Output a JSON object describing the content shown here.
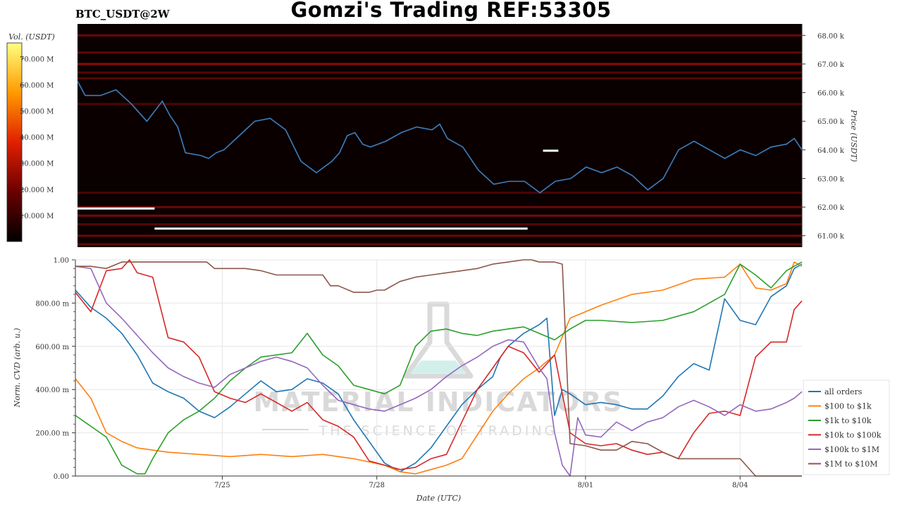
{
  "title": "Gomzi's Trading REF:53305",
  "symbol": "BTC_USDT@2W",
  "watermark": {
    "name": "MATERIAL INDICATORS",
    "tagline": "THE SCIENCE OF TRADING"
  },
  "colors": {
    "price_line": "#3a7fc0",
    "heat_bg": "#0b0000"
  },
  "chart_data": [
    {
      "type": "heatmap",
      "panel": "top",
      "colorbar_label": "Vol. (USDT)",
      "colorbar_ticks": [
        "10.000 M",
        "20.000 M",
        "30.000 M",
        "40.000 M",
        "50.000 M",
        "60.000 M",
        "70.000 M"
      ],
      "colorbar_values": [
        10,
        20,
        30,
        40,
        50,
        60,
        70
      ],
      "colorbar_range": [
        0,
        76
      ],
      "ylabel": "Price (USDT)",
      "ylim": [
        60.6,
        68.4
      ],
      "y_ticks": [
        "61.00 k",
        "62.00 k",
        "63.00 k",
        "64.00 k",
        "65.00 k",
        "66.00 k",
        "67.00 k",
        "68.00 k"
      ],
      "y_tick_values": [
        61,
        62,
        63,
        64,
        65,
        66,
        67,
        68
      ],
      "xlim": [
        23.4,
        28.1
      ],
      "heat_levels": [
        {
          "price": 68.0,
          "vol": 9
        },
        {
          "price": 67.4,
          "vol": 8
        },
        {
          "price": 67.0,
          "vol": 12
        },
        {
          "price": 66.7,
          "vol": 7
        },
        {
          "price": 66.5,
          "vol": 7
        },
        {
          "price": 65.6,
          "vol": 6
        },
        {
          "price": 62.5,
          "vol": 6
        },
        {
          "price": 62.0,
          "vol": 9
        },
        {
          "price": 61.7,
          "vol": 10
        },
        {
          "price": 61.4,
          "vol": 7
        },
        {
          "price": 61.0,
          "vol": 9
        },
        {
          "price": 60.7,
          "vol": 8
        }
      ],
      "price_series": {
        "name": "price",
        "x": [
          23.4,
          23.45,
          23.55,
          23.65,
          23.75,
          23.85,
          23.95,
          24.0,
          24.05,
          24.1,
          24.2,
          24.25,
          24.3,
          24.35,
          24.45,
          24.55,
          24.65,
          24.75,
          24.85,
          24.95,
          25.05,
          25.1,
          25.15,
          25.2,
          25.25,
          25.3,
          25.4,
          25.5,
          25.6,
          25.7,
          25.75,
          25.8,
          25.9,
          26.0,
          26.1,
          26.2,
          26.3,
          26.4,
          26.5,
          26.6,
          26.7,
          26.8,
          26.9,
          27.0,
          27.1,
          27.2,
          27.3,
          27.4,
          27.5,
          27.6,
          27.7,
          27.8,
          27.9,
          28.0,
          28.05,
          28.1
        ],
        "y": [
          66.4,
          65.9,
          65.9,
          66.1,
          65.6,
          65.0,
          65.7,
          65.2,
          64.8,
          63.9,
          63.8,
          63.7,
          63.9,
          64.0,
          64.5,
          65.0,
          65.1,
          64.7,
          63.6,
          63.2,
          63.6,
          63.9,
          64.5,
          64.6,
          64.2,
          64.1,
          64.3,
          64.6,
          64.8,
          64.7,
          64.9,
          64.4,
          64.1,
          63.3,
          62.8,
          62.9,
          62.9,
          62.5,
          62.9,
          63.0,
          63.4,
          63.2,
          63.4,
          63.1,
          62.6,
          63.0,
          64.0,
          64.3,
          64.0,
          63.7,
          64.0,
          63.8,
          64.1,
          64.2,
          64.4,
          64.0
        ]
      },
      "markers": [
        {
          "x0": 23.4,
          "x1": 23.9,
          "price": 61.95
        },
        {
          "x0": 23.9,
          "x1": 26.32,
          "price": 61.25
        },
        {
          "x0": 26.42,
          "x1": 26.52,
          "price": 63.97
        }
      ]
    },
    {
      "type": "line",
      "panel": "bottom",
      "xlabel": "Date (UTC)",
      "ylabel": "Norm. CVD (arb. u.)",
      "ylim": [
        0,
        1
      ],
      "y_ticks": [
        "0.00",
        "200.00 m",
        "400.00 m",
        "600.00 m",
        "800.00 m",
        "1.00"
      ],
      "y_tick_values": [
        0,
        0.2,
        0.4,
        0.6,
        0.8,
        1.0
      ],
      "xlim": [
        23.4,
        28.1
      ],
      "x_ticks": [
        "7/25",
        "7/28",
        "8/01",
        "8/04"
      ],
      "x_tick_values": [
        24.35,
        25.35,
        26.7,
        27.7
      ],
      "legend_position": "lower-right",
      "series": [
        {
          "name": "all orders",
          "color": "#1f77b4",
          "x": [
            23.4,
            23.5,
            23.6,
            23.7,
            23.8,
            23.9,
            24.0,
            24.1,
            24.2,
            24.3,
            24.4,
            24.5,
            24.6,
            24.7,
            24.8,
            24.9,
            25.0,
            25.1,
            25.2,
            25.3,
            25.4,
            25.5,
            25.6,
            25.7,
            25.8,
            25.9,
            26.0,
            26.1,
            26.15,
            26.2,
            26.3,
            26.4,
            26.45,
            26.5,
            26.55,
            26.6,
            26.7,
            26.8,
            26.9,
            27.0,
            27.1,
            27.2,
            27.3,
            27.4,
            27.5,
            27.6,
            27.7,
            27.8,
            27.9,
            28.0,
            28.05,
            28.1
          ],
          "y": [
            0.86,
            0.78,
            0.73,
            0.66,
            0.56,
            0.43,
            0.39,
            0.36,
            0.3,
            0.27,
            0.32,
            0.38,
            0.44,
            0.39,
            0.4,
            0.45,
            0.43,
            0.38,
            0.26,
            0.16,
            0.06,
            0.02,
            0.06,
            0.13,
            0.23,
            0.33,
            0.4,
            0.46,
            0.55,
            0.6,
            0.66,
            0.7,
            0.73,
            0.28,
            0.4,
            0.38,
            0.33,
            0.34,
            0.33,
            0.31,
            0.31,
            0.37,
            0.46,
            0.52,
            0.49,
            0.82,
            0.72,
            0.7,
            0.83,
            0.88,
            0.96,
            0.98
          ]
        },
        {
          "name": "$100 to $1k",
          "color": "#ff7f0e",
          "x": [
            23.4,
            23.5,
            23.6,
            23.7,
            23.8,
            23.9,
            24.0,
            24.2,
            24.4,
            24.6,
            24.8,
            25.0,
            25.2,
            25.4,
            25.5,
            25.6,
            25.7,
            25.8,
            25.9,
            26.0,
            26.1,
            26.2,
            26.3,
            26.4,
            26.45,
            26.5,
            26.6,
            26.8,
            27.0,
            27.2,
            27.4,
            27.6,
            27.7,
            27.8,
            27.9,
            28.0,
            28.05,
            28.1
          ],
          "y": [
            0.45,
            0.36,
            0.2,
            0.16,
            0.13,
            0.12,
            0.11,
            0.1,
            0.09,
            0.1,
            0.09,
            0.1,
            0.08,
            0.05,
            0.02,
            0.01,
            0.03,
            0.05,
            0.08,
            0.19,
            0.3,
            0.38,
            0.45,
            0.5,
            0.53,
            0.56,
            0.73,
            0.79,
            0.84,
            0.86,
            0.91,
            0.92,
            0.98,
            0.87,
            0.86,
            0.89,
            0.99,
            0.97
          ]
        },
        {
          "name": "$1k to $10k",
          "color": "#2ca02c",
          "x": [
            23.4,
            23.5,
            23.6,
            23.7,
            23.8,
            23.85,
            23.9,
            24.0,
            24.1,
            24.2,
            24.3,
            24.4,
            24.5,
            24.6,
            24.7,
            24.8,
            24.9,
            25.0,
            25.1,
            25.2,
            25.3,
            25.4,
            25.5,
            25.6,
            25.7,
            25.8,
            25.9,
            26.0,
            26.1,
            26.2,
            26.3,
            26.4,
            26.5,
            26.6,
            26.7,
            26.8,
            27.0,
            27.2,
            27.4,
            27.5,
            27.6,
            27.7,
            27.8,
            27.9,
            28.0,
            28.05,
            28.1
          ],
          "y": [
            0.28,
            0.23,
            0.18,
            0.05,
            0.01,
            0.01,
            0.08,
            0.2,
            0.26,
            0.3,
            0.36,
            0.44,
            0.5,
            0.55,
            0.56,
            0.57,
            0.66,
            0.56,
            0.51,
            0.42,
            0.4,
            0.38,
            0.42,
            0.6,
            0.67,
            0.68,
            0.66,
            0.65,
            0.67,
            0.68,
            0.69,
            0.66,
            0.63,
            0.68,
            0.72,
            0.72,
            0.71,
            0.72,
            0.76,
            0.8,
            0.84,
            0.98,
            0.93,
            0.87,
            0.95,
            0.97,
            0.99
          ]
        },
        {
          "name": "$10k to $100k",
          "color": "#d62728",
          "x": [
            23.4,
            23.5,
            23.6,
            23.7,
            23.75,
            23.8,
            23.9,
            24.0,
            24.1,
            24.2,
            24.3,
            24.4,
            24.5,
            24.6,
            24.7,
            24.8,
            24.9,
            25.0,
            25.1,
            25.2,
            25.3,
            25.4,
            25.5,
            25.6,
            25.7,
            25.8,
            25.9,
            26.0,
            26.1,
            26.2,
            26.3,
            26.4,
            26.5,
            26.6,
            26.7,
            26.8,
            26.9,
            27.0,
            27.1,
            27.2,
            27.3,
            27.4,
            27.5,
            27.6,
            27.7,
            27.8,
            27.9,
            28.0,
            28.05,
            28.1
          ],
          "y": [
            0.85,
            0.76,
            0.95,
            0.96,
            1.0,
            0.94,
            0.92,
            0.64,
            0.62,
            0.55,
            0.39,
            0.36,
            0.34,
            0.38,
            0.34,
            0.3,
            0.34,
            0.26,
            0.23,
            0.18,
            0.07,
            0.05,
            0.03,
            0.04,
            0.08,
            0.1,
            0.25,
            0.4,
            0.5,
            0.6,
            0.57,
            0.48,
            0.56,
            0.2,
            0.15,
            0.14,
            0.15,
            0.12,
            0.1,
            0.11,
            0.08,
            0.2,
            0.29,
            0.3,
            0.28,
            0.55,
            0.62,
            0.62,
            0.77,
            0.81
          ]
        },
        {
          "name": "$100k to $1M",
          "color": "#9467bd",
          "x": [
            23.4,
            23.5,
            23.6,
            23.7,
            23.8,
            23.9,
            24.0,
            24.1,
            24.2,
            24.3,
            24.4,
            24.5,
            24.6,
            24.7,
            24.8,
            24.9,
            25.0,
            25.1,
            25.2,
            25.3,
            25.4,
            25.5,
            25.6,
            25.7,
            25.8,
            25.9,
            26.0,
            26.1,
            26.2,
            26.3,
            26.4,
            26.45,
            26.5,
            26.55,
            26.6,
            26.65,
            26.7,
            26.8,
            26.9,
            27.0,
            27.1,
            27.2,
            27.3,
            27.4,
            27.5,
            27.6,
            27.7,
            27.8,
            27.9,
            28.0,
            28.05,
            28.1
          ],
          "y": [
            0.97,
            0.96,
            0.8,
            0.73,
            0.65,
            0.57,
            0.5,
            0.46,
            0.43,
            0.41,
            0.47,
            0.5,
            0.53,
            0.55,
            0.53,
            0.5,
            0.42,
            0.35,
            0.33,
            0.31,
            0.3,
            0.33,
            0.36,
            0.4,
            0.46,
            0.51,
            0.55,
            0.6,
            0.63,
            0.62,
            0.5,
            0.45,
            0.2,
            0.05,
            0.0,
            0.27,
            0.19,
            0.18,
            0.25,
            0.21,
            0.25,
            0.27,
            0.32,
            0.35,
            0.32,
            0.28,
            0.33,
            0.3,
            0.31,
            0.34,
            0.36,
            0.39
          ]
        },
        {
          "name": "$1M to $10M",
          "color": "#8c564b",
          "x": [
            23.4,
            23.5,
            23.6,
            23.7,
            23.8,
            23.9,
            24.0,
            24.1,
            24.12,
            24.15,
            24.2,
            24.25,
            24.3,
            24.4,
            24.5,
            24.6,
            24.7,
            24.8,
            24.9,
            25.0,
            25.05,
            25.1,
            25.2,
            25.3,
            25.35,
            25.4,
            25.5,
            25.6,
            25.7,
            25.8,
            25.9,
            26.0,
            26.1,
            26.2,
            26.3,
            26.35,
            26.4,
            26.45,
            26.5,
            26.55,
            26.6,
            26.7,
            26.8,
            26.9,
            27.0,
            27.1,
            27.2,
            27.3,
            27.4,
            27.5,
            27.6,
            27.7,
            27.8,
            27.9,
            28.0,
            28.05,
            28.1
          ],
          "y": [
            0.97,
            0.97,
            0.96,
            0.99,
            0.99,
            0.99,
            0.99,
            0.99,
            0.99,
            0.99,
            0.99,
            0.99,
            0.96,
            0.96,
            0.96,
            0.95,
            0.93,
            0.93,
            0.93,
            0.93,
            0.88,
            0.88,
            0.85,
            0.85,
            0.86,
            0.86,
            0.9,
            0.92,
            0.93,
            0.94,
            0.95,
            0.96,
            0.98,
            0.99,
            1.0,
            1.0,
            0.99,
            0.99,
            0.99,
            0.98,
            0.15,
            0.14,
            0.12,
            0.12,
            0.16,
            0.15,
            0.11,
            0.08,
            0.08,
            0.08,
            0.08,
            0.08,
            0.0,
            0.0,
            0.0,
            0.0,
            0.0
          ]
        }
      ]
    }
  ]
}
